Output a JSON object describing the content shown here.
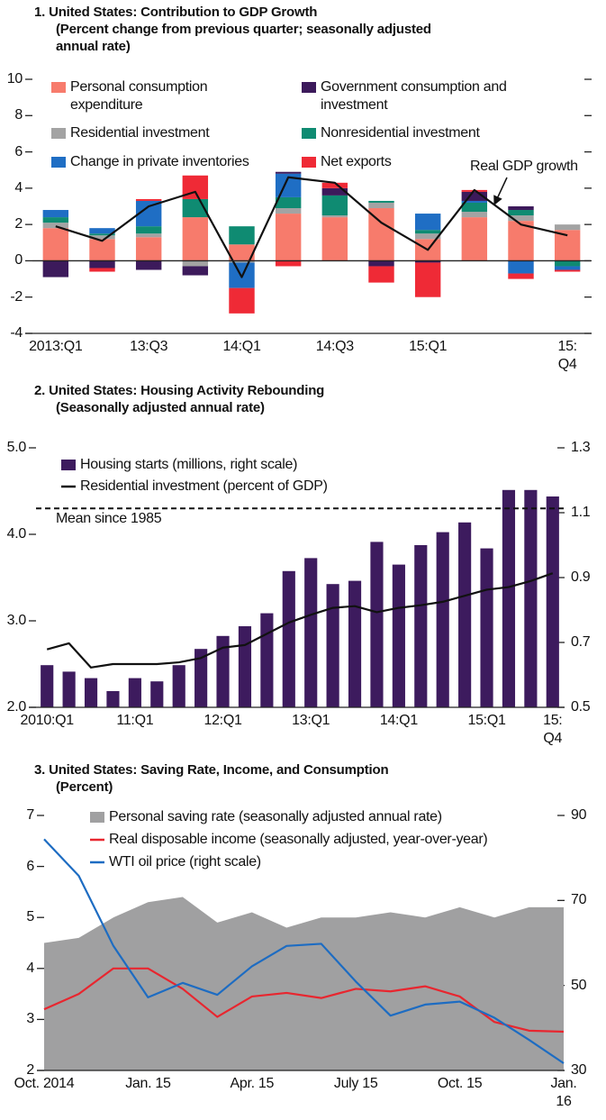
{
  "chart_data": [
    {
      "type": "bar",
      "stacked": true,
      "title": "1. United States: Contribution to GDP Growth\n(Percent change from previous quarter; seasonally adjusted\nannual rate)",
      "categories": [
        "2013:Q1",
        null,
        "13:Q3",
        null,
        "14:Q1",
        null,
        "14:Q3",
        null,
        "15:Q1",
        null,
        null,
        "15:\nQ4"
      ],
      "series": [
        {
          "name": "Personal consumption\nexpenditure",
          "color": "#f77b6c",
          "values": [
            1.8,
            1.2,
            1.3,
            2.4,
            0.9,
            2.6,
            2.4,
            2.9,
            1.2,
            2.4,
            2.2,
            1.7
          ]
        },
        {
          "name": "Residential investment",
          "color": "#a3a3a3",
          "values": [
            0.3,
            0.2,
            0.2,
            -0.3,
            -0.1,
            0.3,
            0.1,
            0.3,
            0.3,
            0.3,
            0.3,
            0.3
          ]
        },
        {
          "name": "Nonresidential investment",
          "color": "#0f8b72",
          "values": [
            0.3,
            0.1,
            0.4,
            1.0,
            1.0,
            0.6,
            1.1,
            0.1,
            0.2,
            0.5,
            0.3,
            -0.3
          ]
        },
        {
          "name": "Change in private inventories",
          "color": "#1f6ec4",
          "values": [
            0.4,
            0.3,
            1.4,
            0,
            -1.4,
            1.3,
            0,
            0,
            0.9,
            0.1,
            -0.7,
            -0.2
          ]
        },
        {
          "name": "Government consumption and\ninvestment",
          "color": "#3c1a5b",
          "values": [
            -0.9,
            -0.4,
            -0.5,
            -0.5,
            0,
            0.1,
            0.4,
            -0.3,
            -0.1,
            0.5,
            0.2,
            0
          ]
        },
        {
          "name": "Net exports",
          "color": "#ef2a36",
          "values": [
            0,
            -0.2,
            0.1,
            1.3,
            -1.4,
            -0.3,
            0.3,
            -0.9,
            -1.9,
            0.1,
            -0.3,
            -0.1
          ]
        },
        {
          "name": "Real GDP growth",
          "type": "line",
          "color": "#111111",
          "values": [
            1.9,
            1.1,
            3.0,
            3.8,
            -0.9,
            4.6,
            4.3,
            2.1,
            0.6,
            3.9,
            2.0,
            1.4
          ]
        }
      ],
      "ylim": [
        -4,
        10
      ],
      "yticks": [
        -4,
        -2,
        0,
        2,
        4,
        6,
        8,
        10
      ]
    },
    {
      "type": "bar",
      "title": "2. United States: Housing Activity Rebounding\n(Seasonally adjusted annual rate)",
      "categories": [
        "2010:Q1",
        null,
        null,
        null,
        "11:Q1",
        null,
        null,
        null,
        "12:Q1",
        null,
        null,
        null,
        "13:Q1",
        null,
        null,
        null,
        "14:Q1",
        null,
        null,
        null,
        "15:Q1",
        null,
        null,
        "15:\nQ4"
      ],
      "series": [
        {
          "name": "Housing starts (millions, right scale)",
          "type": "bar",
          "axis": "y2",
          "color": "#3d1b5e",
          "values": [
            0.63,
            0.61,
            0.59,
            0.55,
            0.59,
            0.58,
            0.63,
            0.68,
            0.72,
            0.75,
            0.79,
            0.92,
            0.96,
            0.88,
            0.89,
            1.01,
            0.94,
            1.0,
            1.04,
            1.07,
            0.99,
            1.17,
            1.17,
            1.15
          ]
        },
        {
          "name": "Residential investment (percent of GDP)",
          "type": "line",
          "color": "#111111",
          "values": [
            2.67,
            2.74,
            2.46,
            2.5,
            2.5,
            2.5,
            2.52,
            2.57,
            2.69,
            2.72,
            2.85,
            2.98,
            3.07,
            3.15,
            3.17,
            3.1,
            3.15,
            3.18,
            3.22,
            3.29,
            3.36,
            3.39,
            3.46,
            3.55
          ]
        }
      ],
      "mean_line": {
        "label": "Mean since 1985",
        "value": 4.3
      },
      "ylim": [
        2,
        5
      ],
      "yticks": [
        {
          "value": 2,
          "label": "2.0"
        },
        {
          "value": 3,
          "label": "3.0"
        },
        {
          "value": 4,
          "label": "4.0"
        },
        {
          "value": 5,
          "label": "5.0"
        }
      ],
      "y2lim": [
        0.5,
        1.3
      ],
      "y2ticks": [
        0.5,
        0.7,
        0.9,
        1.1,
        1.3
      ]
    },
    {
      "type": "line",
      "title": "3. United States: Saving Rate, Income, and Consumption\n(Percent)",
      "categories": [
        "Oct. 2014",
        null,
        null,
        "Jan. 15",
        null,
        null,
        "Apr. 15",
        null,
        null,
        "July 15",
        null,
        null,
        "Oct. 15",
        null,
        null,
        "Jan.\n16"
      ],
      "series": [
        {
          "name": "Personal saving rate (seasonally adjusted annual rate)",
          "type": "area",
          "color": "#a0a0a1",
          "values": [
            4.5,
            4.6,
            5.0,
            5.3,
            5.4,
            4.9,
            5.1,
            4.8,
            5.0,
            5.0,
            5.1,
            5.0,
            5.2,
            5.0,
            5.2,
            5.2
          ]
        },
        {
          "name": "Real disposable income (seasonally adjusted, year-over-year)",
          "type": "line",
          "color": "#e8262f",
          "values": [
            3.2,
            3.5,
            4.0,
            4.0,
            3.6,
            3.05,
            3.45,
            3.52,
            3.42,
            3.6,
            3.55,
            3.65,
            3.45,
            2.95,
            2.78,
            2.76
          ]
        },
        {
          "name": "WTI oil price (right scale)",
          "type": "line",
          "axis": "y2",
          "color": "#1d6cc2",
          "values": [
            84.4,
            75.8,
            59.3,
            47.2,
            50.6,
            47.8,
            54.5,
            59.3,
            59.8,
            50.9,
            42.9,
            45.5,
            46.2,
            42.4,
            37.2,
            31.7
          ]
        }
      ],
      "ylim": [
        2,
        7
      ],
      "yticks": [
        2,
        3,
        4,
        5,
        6,
        7
      ],
      "y2lim": [
        30,
        90
      ],
      "y2ticks": [
        30,
        50,
        70,
        90
      ]
    }
  ]
}
